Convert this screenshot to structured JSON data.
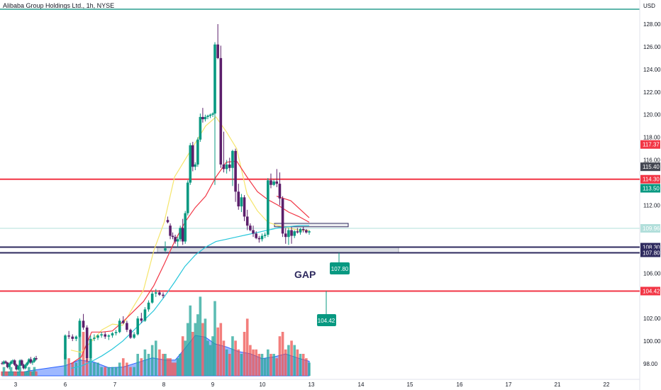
{
  "header": {
    "title": "Alibaba Group Holdings Ltd., 1h, NYSE",
    "currency": "USD"
  },
  "chart_data": {
    "type": "candlestick",
    "title": "Alibaba Group Holdings Ltd., 1h, NYSE",
    "y_unit": "USD",
    "ylim": [
      97.0,
      129.0
    ],
    "y_ticks": [
      "128.00",
      "126.00",
      "124.00",
      "122.00",
      "120.00",
      "118.00",
      "116.00",
      "112.00",
      "106.00",
      "102.00",
      "100.00",
      "98.00"
    ],
    "x_ticks": [
      "3",
      "6",
      "7",
      "8",
      "9",
      "10",
      "13",
      "14",
      "15",
      "16",
      "17",
      "21",
      "22"
    ],
    "levels": [
      {
        "price": 114.3,
        "label": "114.30",
        "color": "#f23645"
      },
      {
        "price": 104.42,
        "label": "104.42",
        "color": "#f23645"
      },
      {
        "price": 108.3,
        "label": "108.30",
        "color": "#2e2a5e"
      },
      {
        "price": 107.8,
        "label": "107.80",
        "color": "#2e2a5e"
      }
    ],
    "price_labels": [
      {
        "price": 117.37,
        "label": "117.37",
        "color": "#f23645"
      },
      {
        "price": 115.4,
        "label": "115.40",
        "color": "#434651"
      },
      {
        "price": 114.3,
        "label": "114.30",
        "color": "#f23645"
      },
      {
        "price": 113.5,
        "label": "113.50",
        "color": "#089981"
      },
      {
        "price": 109.96,
        "label": "109.96",
        "color": "#b2dfdb"
      },
      {
        "price": 108.3,
        "label": "108.30",
        "color": "#2e2a5e"
      },
      {
        "price": 107.8,
        "label": "107.80",
        "color": "#2e2a5e"
      },
      {
        "price": 104.42,
        "label": "104.42",
        "color": "#f23645"
      }
    ],
    "annotations": [
      {
        "text": "GAP"
      },
      {
        "text": "107.80",
        "price": 107.8
      },
      {
        "text": "104.42",
        "price": 104.42
      }
    ],
    "ohlc": [
      [
        98.05,
        98.2,
        97.9,
        98.0
      ],
      [
        98.0,
        98.3,
        97.9,
        98.2
      ],
      [
        98.2,
        98.3,
        98.0,
        98.1
      ],
      [
        98.1,
        98.15,
        97.6,
        97.7
      ],
      [
        97.7,
        98.1,
        97.5,
        98.0
      ],
      [
        98.0,
        98.3,
        97.9,
        98.2
      ],
      [
        98.2,
        98.4,
        98.0,
        98.3
      ],
      [
        98.3,
        98.4,
        97.8,
        97.9
      ],
      [
        97.9,
        98.0,
        97.4,
        97.5
      ],
      [
        97.5,
        97.9,
        97.4,
        97.8
      ],
      [
        97.8,
        98.4,
        97.7,
        98.3
      ],
      [
        98.3,
        98.4,
        97.8,
        97.9
      ],
      [
        97.9,
        98.0,
        97.5,
        97.6
      ],
      [
        97.6,
        98.0,
        97.5,
        97.9
      ],
      [
        97.9,
        98.2,
        97.8,
        98.1
      ],
      [
        98.1,
        98.5,
        98.0,
        98.4
      ],
      [
        98.4,
        98.6,
        98.0,
        98.1
      ],
      [
        98.1,
        98.3,
        97.9,
        98.2
      ],
      [
        98.2,
        98.6,
        98.1,
        98.5
      ],
      [
        98.5,
        98.7,
        98.3,
        98.4
      ],
      [
        98.4,
        100.6,
        98.4,
        100.5
      ],
      [
        100.5,
        100.9,
        100.2,
        100.4
      ],
      [
        100.4,
        100.6,
        100.0,
        100.2
      ],
      [
        100.2,
        100.5,
        100.0,
        100.4
      ],
      [
        100.4,
        102.0,
        100.3,
        101.8
      ],
      [
        101.8,
        102.4,
        101.0,
        101.2
      ],
      [
        101.2,
        101.4,
        98.2,
        98.5
      ],
      [
        98.5,
        100.5,
        98.4,
        100.2
      ],
      [
        100.2,
        100.6,
        100.0,
        100.3
      ],
      [
        100.3,
        100.6,
        100.1,
        100.5
      ],
      [
        100.5,
        100.8,
        100.3,
        100.6
      ],
      [
        100.6,
        100.8,
        100.2,
        100.4
      ],
      [
        100.4,
        100.6,
        100.1,
        100.5
      ],
      [
        100.5,
        100.8,
        100.3,
        100.7
      ],
      [
        100.7,
        101.0,
        100.5,
        100.8
      ],
      [
        100.8,
        102.0,
        100.7,
        101.8
      ],
      [
        101.8,
        102.2,
        101.5,
        101.6
      ],
      [
        101.6,
        101.8,
        100.8,
        101.0
      ],
      [
        101.0,
        101.1,
        100.2,
        100.3
      ],
      [
        100.3,
        100.8,
        100.2,
        100.6
      ],
      [
        100.6,
        102.2,
        100.5,
        102.0
      ],
      [
        102.0,
        102.5,
        101.6,
        101.8
      ],
      [
        101.8,
        103.0,
        101.7,
        102.8
      ],
      [
        102.8,
        103.6,
        102.6,
        103.4
      ],
      [
        103.4,
        104.4,
        103.3,
        104.2
      ],
      [
        104.2,
        104.6,
        103.9,
        104.3
      ],
      [
        104.3,
        104.5,
        104.0,
        104.1
      ],
      [
        104.1,
        104.3,
        103.8,
        104.0
      ],
      [
        108.0,
        108.8,
        107.9,
        108.2
      ],
      [
        110.7,
        111.0,
        110.4,
        110.5
      ],
      [
        110.2,
        110.4,
        109.0,
        109.3
      ],
      [
        109.3,
        109.6,
        109.0,
        109.2
      ],
      [
        109.2,
        109.4,
        108.6,
        108.8
      ],
      [
        108.8,
        109.2,
        108.3,
        109.0
      ],
      [
        109.0,
        110.2,
        108.8,
        110.0
      ],
      [
        110.0,
        110.8,
        108.5,
        108.8
      ],
      [
        108.8,
        111.5,
        108.6,
        111.3
      ],
      [
        111.3,
        114.2,
        111.1,
        114.0
      ],
      [
        114.0,
        117.5,
        113.8,
        117.3
      ],
      [
        117.3,
        117.6,
        115.0,
        115.4
      ],
      [
        115.4,
        115.8,
        115.1,
        115.6
      ],
      [
        115.6,
        118.0,
        115.4,
        117.8
      ],
      [
        117.8,
        120.1,
        117.6,
        119.8
      ],
      [
        119.8,
        120.6,
        119.3,
        119.6
      ],
      [
        119.6,
        120.0,
        119.4,
        119.8
      ],
      [
        119.8,
        120.0,
        119.6,
        119.9
      ],
      [
        119.9,
        120.1,
        119.7,
        120.0
      ],
      [
        120.0,
        120.2,
        119.8,
        120.1
      ],
      [
        120.1,
        126.4,
        113.8,
        126.2
      ],
      [
        126.2,
        128.0,
        124.9,
        125.0
      ],
      [
        125.0,
        126.1,
        115.3,
        115.6
      ],
      [
        115.6,
        118.5,
        114.9,
        115.2
      ],
      [
        115.2,
        116.0,
        114.8,
        115.6
      ],
      [
        115.6,
        116.2,
        115.0,
        115.3
      ],
      [
        115.3,
        116.9,
        113.7,
        116.8
      ],
      [
        116.8,
        117.0,
        112.3,
        113.2
      ],
      [
        113.2,
        113.9,
        111.6,
        111.9
      ],
      [
        111.9,
        113.0,
        111.4,
        112.7
      ],
      [
        112.7,
        112.9,
        110.6,
        111.0
      ],
      [
        111.0,
        111.6,
        109.8,
        110.2
      ],
      [
        110.2,
        110.4,
        109.7,
        109.8
      ],
      [
        109.8,
        110.2,
        109.2,
        109.5
      ],
      [
        109.5,
        109.7,
        109.0,
        109.1
      ],
      [
        109.1,
        109.3,
        108.7,
        109.0
      ],
      [
        109.0,
        109.5,
        108.8,
        109.3
      ],
      [
        109.3,
        109.6,
        109.1,
        109.4
      ],
      [
        109.4,
        114.4,
        109.2,
        114.2
      ],
      [
        114.2,
        114.8,
        113.5,
        113.8
      ],
      [
        113.8,
        114.3,
        113.7,
        114.1
      ],
      [
        114.1,
        115.2,
        113.6,
        113.9
      ],
      [
        113.9,
        114.9,
        112.0,
        112.6
      ],
      [
        112.6,
        112.8,
        109.2,
        109.5
      ],
      [
        109.5,
        110.0,
        108.6,
        109.2
      ],
      [
        109.2,
        110.0,
        108.5,
        109.8
      ],
      [
        109.8,
        110.1,
        108.6,
        109.3
      ],
      [
        109.3,
        109.8,
        109.1,
        109.7
      ],
      [
        109.7,
        110.0,
        109.5,
        109.6
      ],
      [
        109.6,
        110.0,
        109.4,
        109.9
      ],
      [
        109.9,
        110.1,
        109.6,
        109.8
      ],
      [
        109.8,
        109.9,
        109.5,
        109.6
      ],
      [
        109.6,
        109.8,
        109.4,
        109.7
      ]
    ],
    "volume": [
      1,
      2,
      1,
      1,
      1,
      2,
      1,
      1,
      1,
      1,
      2,
      1,
      1,
      1,
      1,
      2,
      1,
      1,
      2,
      1,
      5,
      4,
      3,
      3,
      9,
      10,
      4,
      4,
      3,
      3,
      2,
      2,
      2,
      2,
      2,
      3,
      4,
      3,
      2,
      2,
      5,
      4,
      6,
      5,
      7,
      8,
      6,
      5,
      5,
      4,
      4,
      3,
      3,
      4,
      5,
      9,
      8,
      12,
      16,
      10,
      12,
      14,
      18,
      12,
      13,
      8,
      7,
      9,
      17,
      11,
      12,
      8,
      6,
      5,
      9,
      8,
      6,
      5,
      10,
      13,
      7,
      6,
      6,
      5,
      5,
      4,
      6,
      5,
      5,
      4,
      9,
      10,
      6,
      7,
      8,
      7,
      6,
      5,
      5,
      4,
      3
    ],
    "ema_fast": [
      [
        98.2,
        99.2
      ],
      [
        98.3,
        99.0
      ],
      [
        98.4,
        100.0
      ],
      [
        99.0,
        101.0
      ],
      [
        100.0,
        101.5
      ],
      [
        100.6,
        101.4
      ],
      [
        101.0,
        103.0
      ],
      [
        101.8,
        104.5
      ],
      [
        103.0,
        108.0
      ],
      [
        104.5,
        110.5
      ],
      [
        106.5,
        114.5
      ],
      [
        108.0,
        116.0
      ],
      [
        110.0,
        117.5
      ],
      [
        112.0,
        119.0
      ],
      [
        114.0,
        119.8
      ],
      [
        116.0,
        118.5
      ],
      [
        118.5,
        117.0
      ],
      [
        117.5,
        113.0
      ],
      [
        115.5,
        111.5
      ],
      [
        113.5,
        110.5
      ],
      [
        111.5,
        110.2
      ],
      [
        110.0,
        110.0
      ],
      [
        108.8,
        109.8
      ],
      [
        107.6,
        109.8
      ]
    ],
    "ema_mid": [
      [
        98.0,
        98.0
      ],
      [
        98.2,
        98.6
      ],
      [
        98.4,
        100.8
      ],
      [
        99.0,
        100.8
      ],
      [
        100.0,
        100.9
      ],
      [
        101.0,
        101.7
      ],
      [
        102.2,
        102.6
      ],
      [
        103.4,
        103.5
      ],
      [
        104.6,
        104.9
      ],
      [
        105.8,
        106.8
      ],
      [
        107.0,
        108.8
      ],
      [
        108.2,
        110.5
      ],
      [
        109.5,
        111.8
      ],
      [
        110.6,
        112.8
      ],
      [
        112.0,
        114.5
      ],
      [
        113.4,
        115.8
      ],
      [
        116.2,
        115.9
      ],
      [
        117.4,
        114.5
      ],
      [
        118.6,
        113.2
      ],
      [
        119.8,
        112.5
      ],
      [
        121.0,
        112.0
      ],
      [
        122.2,
        111.4
      ],
      [
        123.4,
        111.0
      ],
      [
        124.6,
        110.5
      ]
    ],
    "ema_slow": [
      [
        98.0,
        97.6
      ],
      [
        99.0,
        97.8
      ],
      [
        100.2,
        98.2
      ],
      [
        101.4,
        98.7
      ],
      [
        102.6,
        99.3
      ],
      [
        103.8,
        100.0
      ],
      [
        105.0,
        100.9
      ],
      [
        106.2,
        101.8
      ],
      [
        107.4,
        102.7
      ],
      [
        108.6,
        103.9
      ],
      [
        109.8,
        105.2
      ],
      [
        111.0,
        106.6
      ],
      [
        112.2,
        107.6
      ],
      [
        113.4,
        108.3
      ],
      [
        114.6,
        108.8
      ],
      [
        115.8,
        109.0
      ],
      [
        117.0,
        109.2
      ],
      [
        118.2,
        109.4
      ],
      [
        119.4,
        109.6
      ],
      [
        120.6,
        109.8
      ],
      [
        121.8,
        110.0
      ],
      [
        123.0,
        110.1
      ],
      [
        124.2,
        110.2
      ],
      [
        125.4,
        110.2
      ]
    ]
  }
}
